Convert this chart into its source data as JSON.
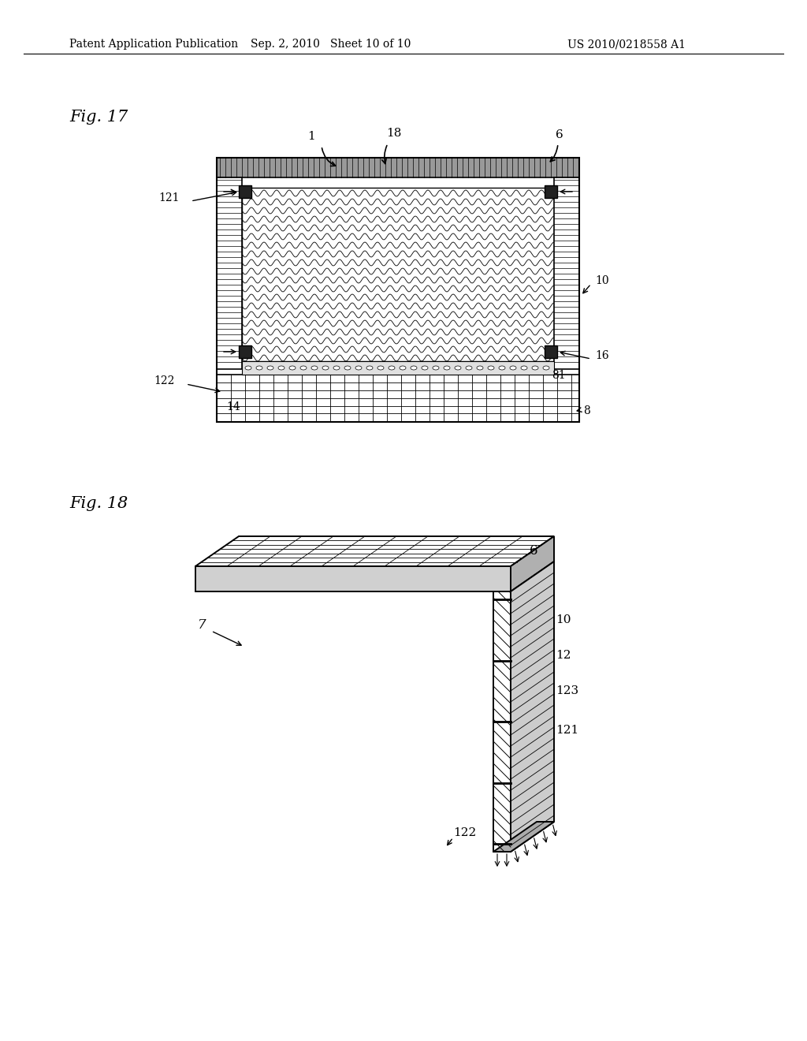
{
  "header_left": "Patent Application Publication",
  "header_mid": "Sep. 2, 2010   Sheet 10 of 10",
  "header_right": "US 2010/0218558 A1",
  "fig17_label": "Fig. 17",
  "fig18_label": "Fig. 18",
  "bg_color": "#ffffff"
}
